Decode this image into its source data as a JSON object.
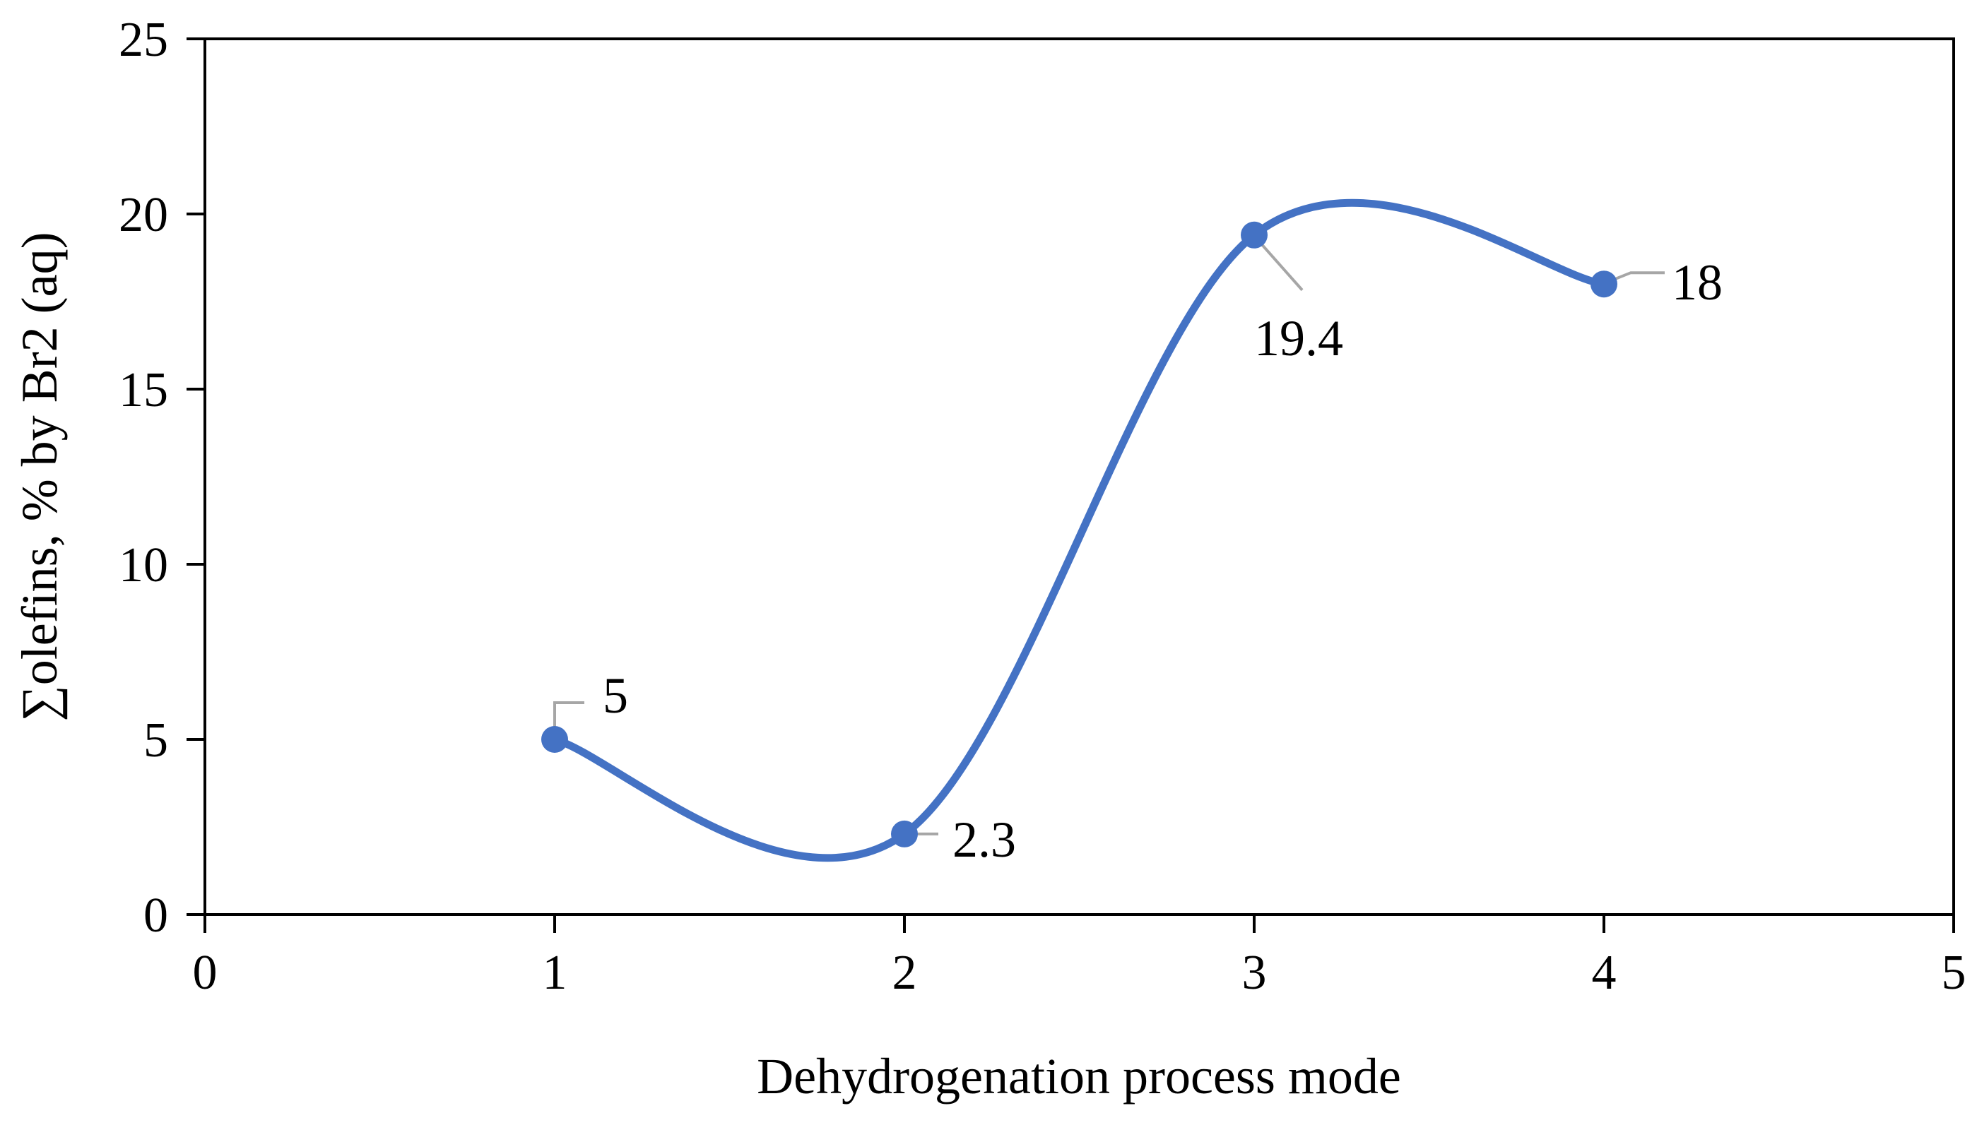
{
  "chart_data": {
    "type": "scatter",
    "title": "",
    "xlabel": "Dehydrogenation process mode",
    "ylabel": "∑olefins, % by Br2 (aq)",
    "xlim": [
      0,
      5
    ],
    "ylim": [
      0,
      25
    ],
    "x_ticks": [
      0,
      1,
      2,
      3,
      4,
      5
    ],
    "y_ticks": [
      0,
      5,
      10,
      15,
      20,
      25
    ],
    "grid": false,
    "legend": "none",
    "series": [
      {
        "name": "∑olefins",
        "smooth": true,
        "x": [
          1,
          2,
          3,
          4
        ],
        "values": [
          5,
          2.3,
          19.4,
          18
        ],
        "labels": [
          "5",
          "2.3",
          "19.4",
          "18"
        ]
      }
    ],
    "colors": {
      "series": "#4472C4",
      "leader": "#A6A6A6",
      "axis": "#000000"
    }
  }
}
